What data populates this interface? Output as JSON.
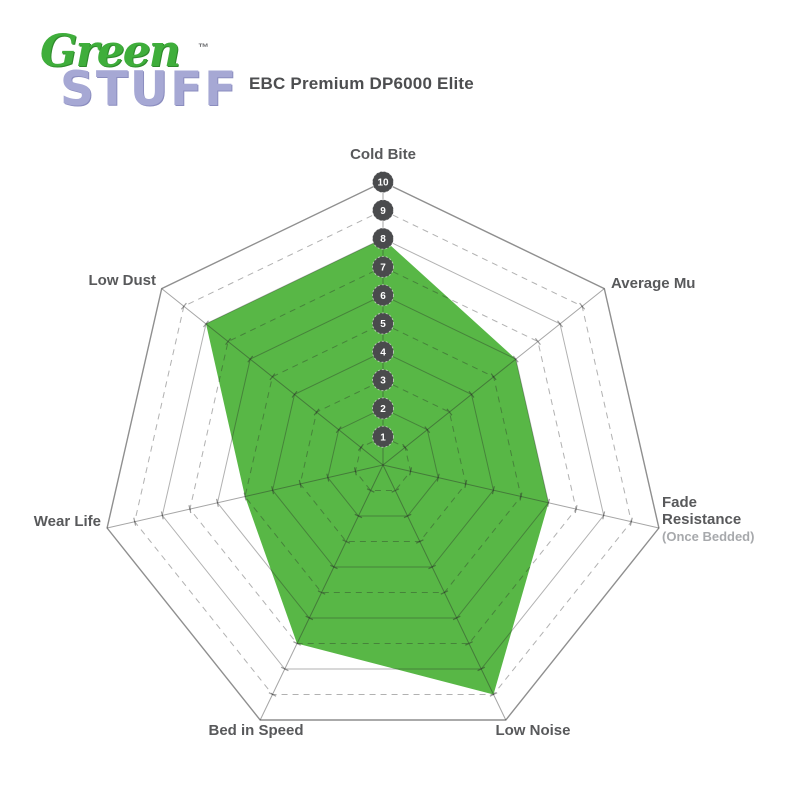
{
  "logo": {
    "word1": "Green",
    "word2": "STUFF",
    "trademark": "™",
    "word1_color": "#3fae3b",
    "word2_color": "#a6a8d4"
  },
  "header": {
    "title": "EBC Premium DP6000 Elite"
  },
  "chart_data": {
    "type": "radar",
    "title": "EBC Premium DP6000 Elite",
    "scale_min": 0,
    "scale_max": 10,
    "scale_ticks": [
      "1",
      "2",
      "3",
      "4",
      "5",
      "6",
      "7",
      "8",
      "9",
      "10"
    ],
    "grid": "7-sided concentric rings, solid at even values, dashed at odd values, radial spokes with tick marks",
    "legend_position": "none",
    "axes": [
      {
        "label": "Cold Bite",
        "value": 8
      },
      {
        "label": "Average Mu",
        "value": 6
      },
      {
        "label": "Fade Resistance",
        "sublabel": "(Once Bedded)",
        "value": 6
      },
      {
        "label": "Low Noise",
        "value": 9
      },
      {
        "label": "Bed in Speed",
        "value": 7
      },
      {
        "label": "Wear Life",
        "value": 5
      },
      {
        "label": "Low Dust",
        "value": 8
      }
    ],
    "series": [
      {
        "name": "EBC Premium DP6000 Elite",
        "categories": [
          "Cold Bite",
          "Average Mu",
          "Fade Resistance (Once Bedded)",
          "Low Noise",
          "Bed in Speed",
          "Wear Life",
          "Low Dust"
        ],
        "values": [
          8,
          6,
          6,
          9,
          7,
          5,
          8
        ]
      }
    ],
    "colors": {
      "fill": "#58b746",
      "grid_line": "#a8a8a8",
      "axis_label": "#58595b",
      "axis_sublabel": "#a7a9ac",
      "scale_marker": "#4a4b4d",
      "scale_marker_text": "#ffffff"
    }
  }
}
